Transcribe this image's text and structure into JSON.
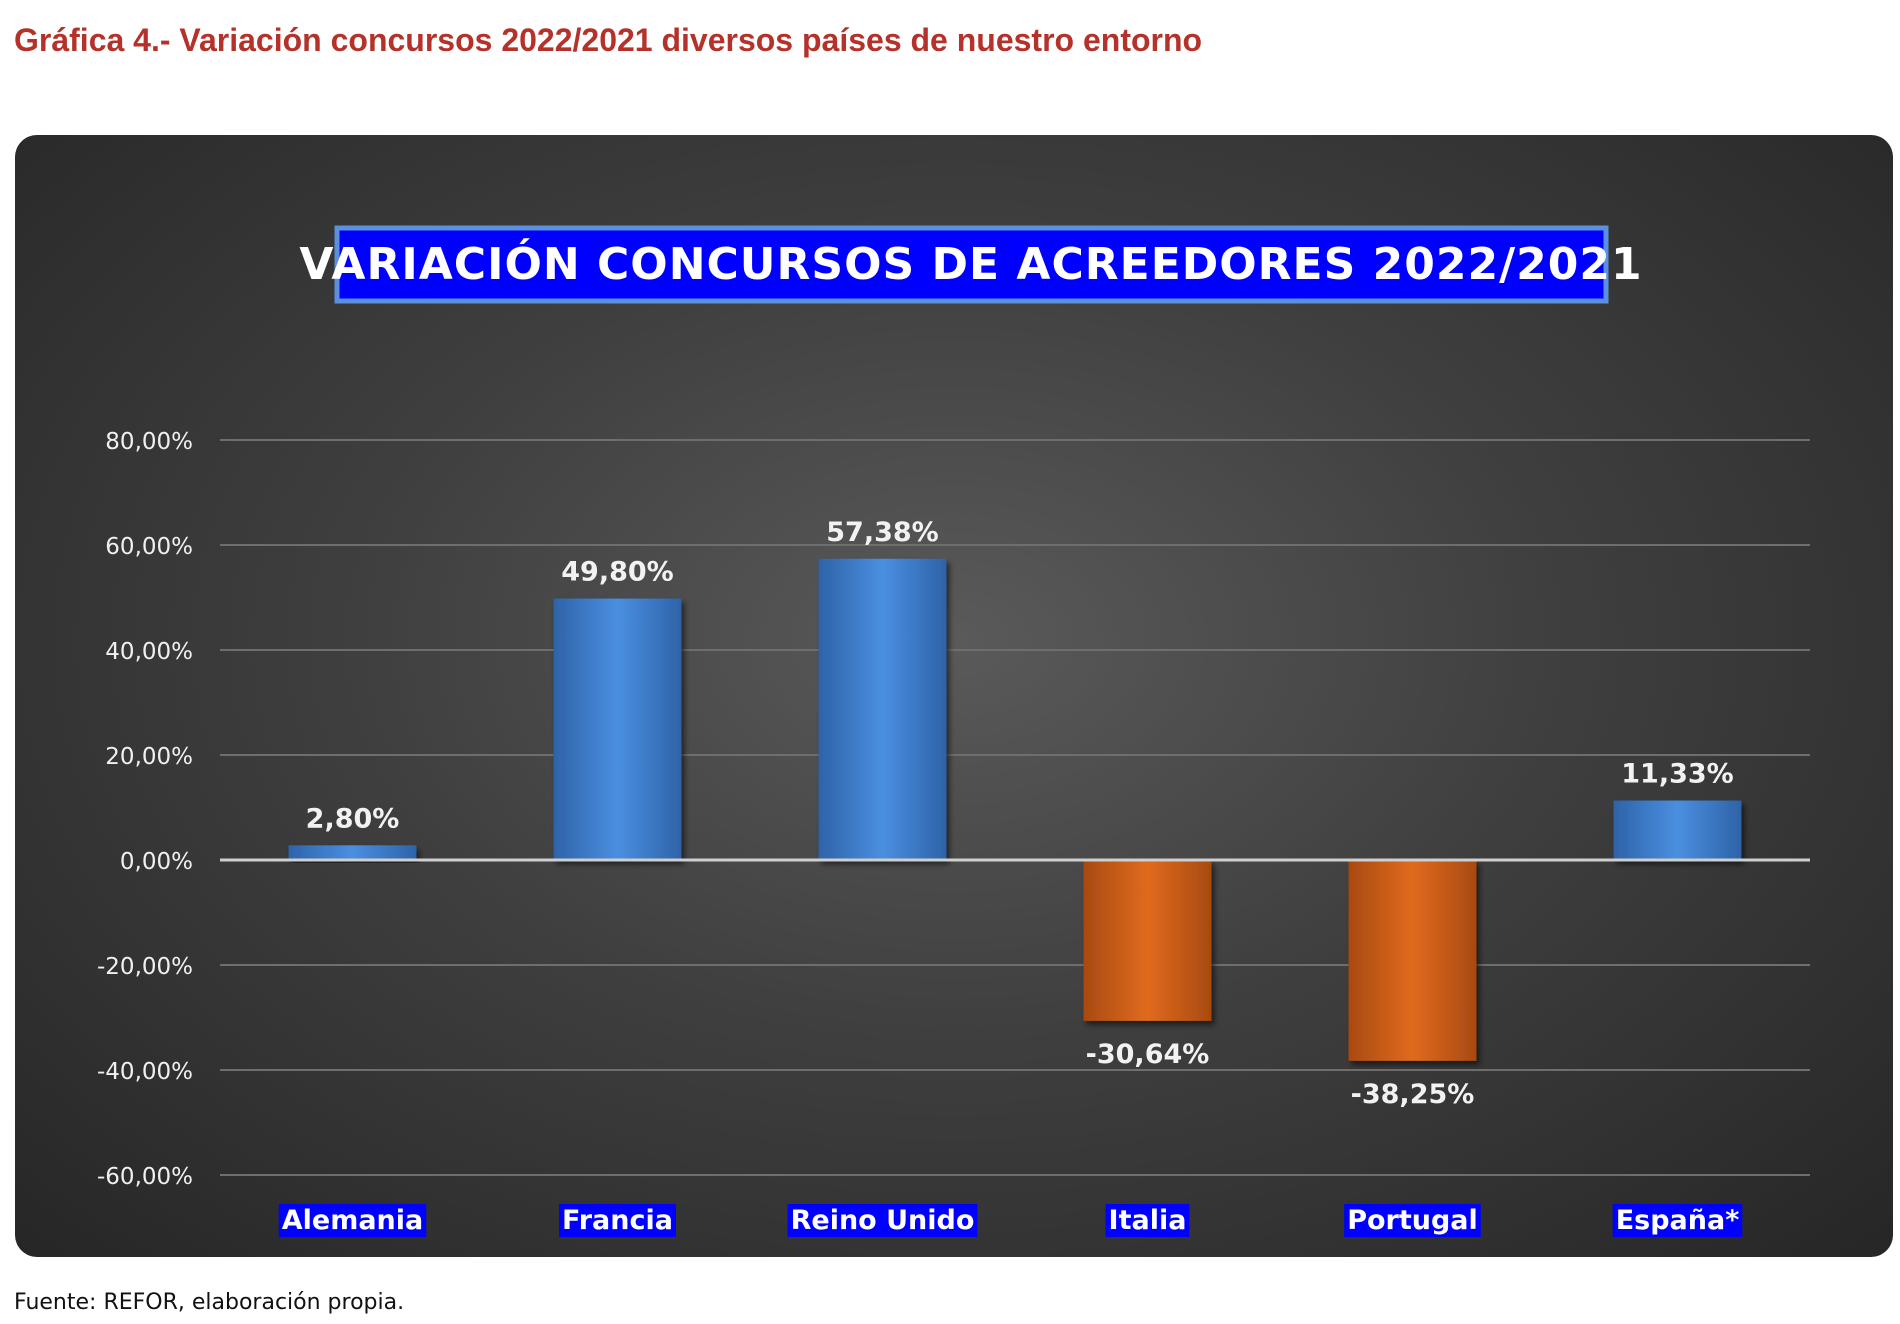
{
  "page_title": "Gráfica 4.- Variación concursos 2022/2021 diversos países de nuestro entorno",
  "source": "Fuente: REFOR, elaboración propia.",
  "colors": {
    "title_text": "#b5322b",
    "chart_background": "#3f3f3f",
    "positive_bar": "#3f80d0",
    "negative_bar": "#d2601a",
    "label_box": "#0000ff"
  },
  "chart_data": {
    "type": "bar",
    "title": "VARIACIÓN CONCURSOS DE ACREEDORES 2022/2021",
    "categories": [
      "Alemania",
      "Francia",
      "Reino Unido",
      "Italia",
      "Portugal",
      "España*"
    ],
    "values": [
      2.8,
      49.8,
      57.38,
      -30.64,
      -38.25,
      11.33
    ],
    "data_labels": [
      "2,80%",
      "49,80%",
      "57,38%",
      "-30,64%",
      "-38,25%",
      "11,33%"
    ],
    "ylim": [
      -60,
      80
    ],
    "y_ticks": [
      80,
      60,
      40,
      20,
      0,
      -20,
      -40,
      -60
    ],
    "y_tick_labels": [
      "80,00%",
      "60,00%",
      "40,00%",
      "20,00%",
      "0,00%",
      "-20,00%",
      "-40,00%",
      "-60,00%"
    ],
    "xlabel": "",
    "ylabel": "",
    "grid": true,
    "legend": "none"
  }
}
